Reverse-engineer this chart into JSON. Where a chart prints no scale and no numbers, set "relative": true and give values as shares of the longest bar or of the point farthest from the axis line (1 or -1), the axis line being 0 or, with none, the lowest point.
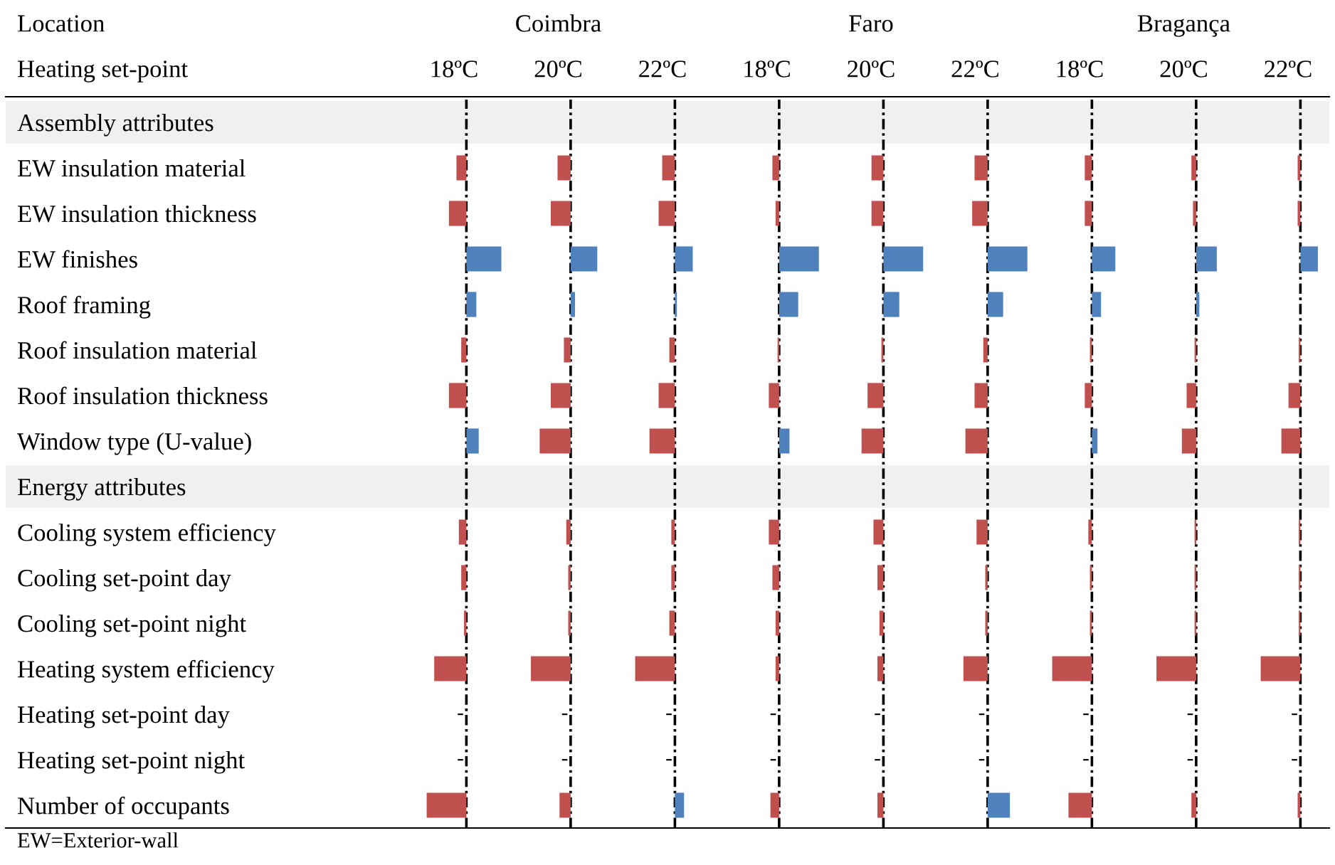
{
  "chart_data": [
    {
      "type": "bar",
      "orientation": "horizontal",
      "relative": true,
      "title": "18ºC",
      "tick_labels": "y",
      "ref_lines": [
        {
          "axis": "x",
          "value": 0,
          "color": "#000000",
          "line_style": "dashdot"
        }
      ],
      "annotations": [
        "Location",
        "Heating set-point",
        "EW=Exterior-wall",
        {
          "text": "-",
          "y": "Heating set-point day"
        },
        {
          "text": "-",
          "y": "Heating set-point night"
        }
      ],
      "categories": [
        "Assembly attributes",
        "EW insulation material",
        "EW insulation thickness",
        "EW finishes",
        "Roof framing",
        "Roof insulation material",
        "Roof insulation thickness",
        "Window type (U-value)",
        "Energy attributes",
        "Cooling system efficiency",
        "Cooling set-point day",
        "Cooling set-point night",
        "Heating system efficiency",
        "Heating set-point day",
        "Heating set-point night",
        "Number of occupants"
      ],
      "values": [
        null,
        -0.25,
        -0.44,
        0.88,
        0.25,
        -0.13,
        -0.44,
        0.31,
        null,
        -0.19,
        -0.13,
        -0.06,
        -0.81,
        null,
        null,
        -1
      ],
      "colors": [
        null,
        "#c0504d",
        "#c0504d",
        "#4f81bd",
        "#4f81bd",
        "#c0504d",
        "#c0504d",
        "#4f81bd",
        null,
        "#c0504d",
        "#c0504d",
        "#c0504d",
        "#c0504d",
        null,
        null,
        "#c0504d"
      ]
    },
    {
      "type": "bar",
      "orientation": "horizontal",
      "relative": true,
      "title": "20ºC",
      "subtitle": "Coimbra",
      "tick_labels": false,
      "ref_lines": [
        {
          "axis": "x",
          "value": 0,
          "color": "#000000",
          "line_style": "dashdot"
        }
      ],
      "annotations": [
        {
          "text": "-",
          "y": "Heating set-point day"
        },
        {
          "text": "-",
          "y": "Heating set-point night"
        }
      ],
      "categories": [
        "Assembly attributes",
        "EW insulation material",
        "EW insulation thickness",
        "EW finishes",
        "Roof framing",
        "Roof insulation material",
        "Roof insulation thickness",
        "Window type (U-value)",
        "Energy attributes",
        "Cooling system efficiency",
        "Cooling set-point day",
        "Cooling set-point night",
        "Heating system efficiency",
        "Heating set-point day",
        "Heating set-point night",
        "Number of occupants"
      ],
      "values": [
        null,
        -0.33,
        -0.5,
        0.67,
        0.11,
        -0.17,
        -0.5,
        -0.78,
        null,
        -0.11,
        -0.06,
        -0.06,
        -1,
        null,
        null,
        -0.28
      ],
      "colors": [
        null,
        "#c0504d",
        "#c0504d",
        "#4f81bd",
        "#4f81bd",
        "#c0504d",
        "#c0504d",
        "#c0504d",
        null,
        "#c0504d",
        "#c0504d",
        "#c0504d",
        "#c0504d",
        null,
        null,
        "#c0504d"
      ]
    },
    {
      "type": "bar",
      "orientation": "horizontal",
      "relative": true,
      "title": "22ºC",
      "tick_labels": false,
      "ref_lines": [
        {
          "axis": "x",
          "value": 0,
          "color": "#000000",
          "line_style": "dashdot"
        }
      ],
      "annotations": [
        {
          "text": "-",
          "y": "Heating set-point day"
        },
        {
          "text": "-",
          "y": "Heating set-point night"
        }
      ],
      "categories": [
        "Assembly attributes",
        "EW insulation material",
        "EW insulation thickness",
        "EW finishes",
        "Roof framing",
        "Roof insulation material",
        "Roof insulation thickness",
        "Window type (U-value)",
        "Energy attributes",
        "Cooling system efficiency",
        "Cooling set-point day",
        "Cooling set-point night",
        "Heating system efficiency",
        "Heating set-point day",
        "Heating set-point night",
        "Number of occupants"
      ],
      "values": [
        null,
        -0.32,
        -0.41,
        0.45,
        0.05,
        -0.14,
        -0.41,
        -0.64,
        null,
        -0.09,
        -0.09,
        -0.14,
        -1,
        null,
        null,
        0.23
      ],
      "colors": [
        null,
        "#c0504d",
        "#c0504d",
        "#4f81bd",
        "#4f81bd",
        "#c0504d",
        "#c0504d",
        "#c0504d",
        null,
        "#c0504d",
        "#c0504d",
        "#c0504d",
        "#c0504d",
        null,
        null,
        "#4f81bd"
      ]
    },
    {
      "type": "bar",
      "orientation": "horizontal",
      "relative": true,
      "title": "18ºC",
      "tick_labels": false,
      "ref_lines": [
        {
          "axis": "x",
          "value": 0,
          "color": "#000000",
          "line_style": "dashdot"
        }
      ],
      "annotations": [
        {
          "text": "-",
          "y": "Heating set-point day"
        },
        {
          "text": "-",
          "y": "Heating set-point night"
        }
      ],
      "categories": [
        "Assembly attributes",
        "EW insulation material",
        "EW insulation thickness",
        "EW finishes",
        "Roof framing",
        "Roof insulation material",
        "Roof insulation thickness",
        "Window type (U-value)",
        "Energy attributes",
        "Cooling system efficiency",
        "Cooling set-point day",
        "Cooling set-point night",
        "Heating system efficiency",
        "Heating set-point day",
        "Heating set-point night",
        "Number of occupants"
      ],
      "values": [
        null,
        -0.17,
        -0.09,
        1,
        0.48,
        -0.04,
        -0.26,
        0.26,
        null,
        -0.26,
        -0.17,
        -0.09,
        -0.09,
        null,
        null,
        -0.22
      ],
      "colors": [
        null,
        "#c0504d",
        "#c0504d",
        "#4f81bd",
        "#4f81bd",
        "#c0504d",
        "#c0504d",
        "#4f81bd",
        null,
        "#c0504d",
        "#c0504d",
        "#c0504d",
        "#c0504d",
        null,
        null,
        "#c0504d"
      ]
    },
    {
      "type": "bar",
      "orientation": "horizontal",
      "relative": true,
      "title": "20ºC",
      "subtitle": "Faro",
      "tick_labels": false,
      "ref_lines": [
        {
          "axis": "x",
          "value": 0,
          "color": "#000000",
          "line_style": "dashdot"
        }
      ],
      "annotations": [
        {
          "text": "-",
          "y": "Heating set-point day"
        },
        {
          "text": "-",
          "y": "Heating set-point night"
        }
      ],
      "categories": [
        "Assembly attributes",
        "EW insulation material",
        "EW insulation thickness",
        "EW finishes",
        "Roof framing",
        "Roof insulation material",
        "Roof insulation thickness",
        "Window type (U-value)",
        "Energy attributes",
        "Cooling system efficiency",
        "Cooling set-point day",
        "Cooling set-point night",
        "Heating system efficiency",
        "Heating set-point day",
        "Heating set-point night",
        "Number of occupants"
      ],
      "values": [
        null,
        -0.3,
        -0.3,
        1,
        0.4,
        -0.05,
        -0.4,
        -0.55,
        null,
        -0.25,
        -0.15,
        -0.1,
        -0.15,
        null,
        null,
        -0.15
      ],
      "colors": [
        null,
        "#c0504d",
        "#c0504d",
        "#4f81bd",
        "#4f81bd",
        "#c0504d",
        "#c0504d",
        "#c0504d",
        null,
        "#c0504d",
        "#c0504d",
        "#c0504d",
        "#c0504d",
        null,
        null,
        "#c0504d"
      ]
    },
    {
      "type": "bar",
      "orientation": "horizontal",
      "relative": true,
      "title": "22ºC",
      "tick_labels": false,
      "ref_lines": [
        {
          "axis": "x",
          "value": 0,
          "color": "#000000",
          "line_style": "dashdot"
        }
      ],
      "annotations": [
        {
          "text": "-",
          "y": "Heating set-point day"
        },
        {
          "text": "-",
          "y": "Heating set-point night"
        }
      ],
      "categories": [
        "Assembly attributes",
        "EW insulation material",
        "EW insulation thickness",
        "EW finishes",
        "Roof framing",
        "Roof insulation material",
        "Roof insulation thickness",
        "Window type (U-value)",
        "Energy attributes",
        "Cooling system efficiency",
        "Cooling set-point day",
        "Cooling set-point night",
        "Heating system efficiency",
        "Heating set-point day",
        "Heating set-point night",
        "Number of occupants"
      ],
      "values": [
        null,
        -0.33,
        -0.39,
        1,
        0.39,
        -0.11,
        -0.33,
        -0.56,
        null,
        -0.28,
        -0.06,
        -0.06,
        -0.61,
        null,
        null,
        0.56
      ],
      "colors": [
        null,
        "#c0504d",
        "#c0504d",
        "#4f81bd",
        "#4f81bd",
        "#c0504d",
        "#c0504d",
        "#c0504d",
        null,
        "#c0504d",
        "#c0504d",
        "#c0504d",
        "#c0504d",
        null,
        null,
        "#4f81bd"
      ]
    },
    {
      "type": "bar",
      "orientation": "horizontal",
      "relative": true,
      "title": "18ºC",
      "tick_labels": false,
      "ref_lines": [
        {
          "axis": "x",
          "value": 0,
          "color": "#000000",
          "line_style": "dashdot"
        }
      ],
      "annotations": [
        {
          "text": "-",
          "y": "Heating set-point day"
        },
        {
          "text": "-",
          "y": "Heating set-point night"
        }
      ],
      "categories": [
        "Assembly attributes",
        "EW insulation material",
        "EW insulation thickness",
        "EW finishes",
        "Roof framing",
        "Roof insulation material",
        "Roof insulation thickness",
        "Window type (U-value)",
        "Energy attributes",
        "Cooling system efficiency",
        "Cooling set-point day",
        "Cooling set-point night",
        "Heating system efficiency",
        "Heating set-point day",
        "Heating set-point night",
        "Number of occupants"
      ],
      "values": [
        null,
        -0.18,
        -0.18,
        0.59,
        0.23,
        -0.05,
        -0.18,
        0.14,
        null,
        -0.09,
        -0.05,
        -0.05,
        -1,
        null,
        null,
        -0.59
      ],
      "colors": [
        null,
        "#c0504d",
        "#c0504d",
        "#4f81bd",
        "#4f81bd",
        "#c0504d",
        "#c0504d",
        "#4f81bd",
        null,
        "#c0504d",
        "#c0504d",
        "#c0504d",
        "#c0504d",
        null,
        null,
        "#c0504d"
      ]
    },
    {
      "type": "bar",
      "orientation": "horizontal",
      "relative": true,
      "title": "20ºC",
      "subtitle": "Bragança",
      "tick_labels": false,
      "ref_lines": [
        {
          "axis": "x",
          "value": 0,
          "color": "#000000",
          "line_style": "dashdot"
        }
      ],
      "annotations": [
        {
          "text": "-",
          "y": "Heating set-point day"
        },
        {
          "text": "-",
          "y": "Heating set-point night"
        }
      ],
      "categories": [
        "Assembly attributes",
        "EW insulation material",
        "EW insulation thickness",
        "EW finishes",
        "Roof framing",
        "Roof insulation material",
        "Roof insulation thickness",
        "Window type (U-value)",
        "Energy attributes",
        "Cooling system efficiency",
        "Cooling set-point day",
        "Cooling set-point night",
        "Heating system efficiency",
        "Heating set-point day",
        "Heating set-point night",
        "Number of occupants"
      ],
      "values": [
        null,
        -0.12,
        -0.08,
        0.52,
        0.08,
        -0.04,
        -0.24,
        -0.36,
        null,
        -0.04,
        -0.04,
        -0.04,
        -1,
        null,
        null,
        -0.12
      ],
      "colors": [
        null,
        "#c0504d",
        "#c0504d",
        "#4f81bd",
        "#4f81bd",
        "#c0504d",
        "#c0504d",
        "#c0504d",
        null,
        "#c0504d",
        "#c0504d",
        "#c0504d",
        "#c0504d",
        null,
        null,
        "#c0504d"
      ]
    },
    {
      "type": "bar",
      "orientation": "horizontal",
      "relative": true,
      "title": "22ºC",
      "tick_labels": false,
      "ref_lines": [
        {
          "axis": "x",
          "value": 0,
          "color": "#000000",
          "line_style": "dashdot"
        }
      ],
      "annotations": [
        {
          "text": "-",
          "y": "Heating set-point day"
        },
        {
          "text": "-",
          "y": "Heating set-point night"
        }
      ],
      "categories": [
        "Assembly attributes",
        "EW insulation material",
        "EW insulation thickness",
        "EW finishes",
        "Roof framing",
        "Roof insulation material",
        "Roof insulation thickness",
        "Window type (U-value)",
        "Energy attributes",
        "Cooling system efficiency",
        "Cooling set-point day",
        "Cooling set-point night",
        "Heating system efficiency",
        "Heating set-point day",
        "Heating set-point night",
        "Number of occupants"
      ],
      "values": [
        null,
        -0.07,
        -0.07,
        0.44,
        0,
        -0.04,
        -0.3,
        -0.48,
        null,
        -0.04,
        -0.04,
        -0.04,
        -1,
        null,
        null,
        -0.07
      ],
      "colors": [
        null,
        "#c0504d",
        "#c0504d",
        "#4f81bd",
        "#4f81bd",
        "#c0504d",
        "#c0504d",
        "#c0504d",
        null,
        "#c0504d",
        "#c0504d",
        "#c0504d",
        "#c0504d",
        null,
        null,
        "#c0504d"
      ]
    }
  ]
}
